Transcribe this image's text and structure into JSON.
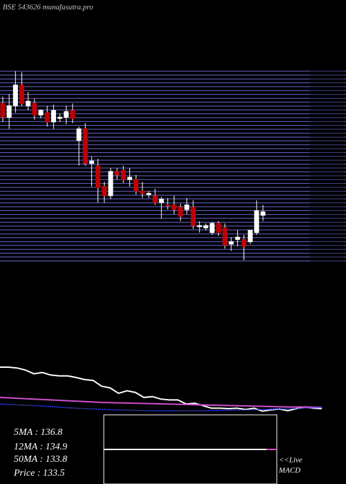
{
  "chart_data": {
    "type": "candlestick",
    "title": "BSE 543626 munafasutra.pro",
    "ylim": [
      131.2,
      148
    ],
    "candles": {
      "open": [
        145.2,
        144.0,
        145.0,
        146.8,
        145.0,
        145.2,
        144.2,
        144.4,
        143.6,
        144.0,
        144.0,
        144.6,
        142.0,
        143.0,
        140.0,
        139.8,
        138.0,
        137.2,
        139.3,
        139.4,
        138.6,
        138.6,
        137.6,
        137.3,
        137.2,
        136.6,
        136.4,
        136.4,
        136.2,
        136.0,
        136.2,
        134.6,
        134.4,
        134.0,
        134.8,
        134.4,
        133.0,
        133.4,
        133.4,
        133.2,
        134.0,
        135.5
      ],
      "high": [
        145.8,
        146.0,
        148.0,
        147.9,
        146.2,
        145.6,
        144.7,
        145.0,
        145.1,
        144.3,
        145.0,
        145.2,
        143.2,
        143.5,
        140.6,
        140.4,
        138.4,
        139.6,
        139.6,
        139.8,
        139.6,
        139.0,
        138.4,
        137.6,
        137.8,
        137.1,
        137.0,
        137.2,
        136.5,
        137.0,
        136.8,
        135.0,
        134.8,
        134.9,
        135.0,
        134.8,
        133.6,
        134.2,
        133.8,
        134.2,
        136.8,
        136.4
      ],
      "low": [
        143.6,
        143.0,
        144.4,
        145.0,
        144.6,
        143.8,
        143.9,
        143.2,
        143.0,
        143.6,
        143.4,
        143.5,
        139.8,
        139.8,
        138.0,
        136.6,
        136.6,
        136.9,
        138.6,
        138.3,
        138.0,
        137.3,
        137.0,
        137.0,
        136.4,
        135.2,
        136.0,
        135.6,
        135.0,
        135.6,
        134.3,
        134.0,
        134.2,
        133.8,
        133.7,
        132.6,
        132.4,
        132.8,
        131.6,
        133.0,
        133.8,
        135.0
      ],
      "close": [
        144.0,
        145.0,
        146.8,
        145.2,
        145.4,
        144.2,
        144.6,
        143.6,
        144.6,
        144.0,
        144.5,
        143.9,
        143.0,
        140.0,
        140.2,
        137.9,
        137.2,
        139.3,
        139.0,
        138.6,
        138.8,
        137.6,
        137.4,
        137.4,
        136.6,
        136.9,
        136.3,
        136.0,
        135.4,
        136.4,
        134.6,
        134.6,
        134.6,
        134.8,
        134.0,
        132.9,
        133.2,
        133.6,
        132.8,
        134.2,
        135.9,
        135.8
      ]
    },
    "ma_panel": {
      "ylim": [
        132,
        147
      ],
      "series": [
        {
          "color": "#ffffff",
          "values": [
            143.5,
            143.5,
            143.3,
            142.8,
            141.9,
            142.2,
            141.6,
            141.4,
            141.4,
            141.0,
            140.5,
            140.3,
            138.9,
            138.5,
            137.2,
            137.8,
            137.4,
            136.2,
            136.4,
            135.8,
            135.6,
            135.6,
            134.6,
            134.8,
            134.2,
            133.6,
            133.6,
            133.5,
            133.6,
            133.3,
            133.6,
            132.9,
            133.2,
            133.4,
            133.0,
            133.5,
            133.9,
            133.6,
            133.5
          ]
        },
        {
          "color": "#d050d0",
          "values": [
            136.2,
            136.0,
            135.8,
            135.6,
            135.4,
            135.2,
            135.0,
            134.9,
            134.8,
            134.7,
            134.6,
            134.5,
            134.4,
            134.3,
            134.2,
            134.1,
            134.0,
            133.9,
            133.9,
            133.8
          ]
        },
        {
          "color": "#3040ff",
          "values": [
            134.6,
            134.4,
            134.2,
            133.9,
            133.6,
            133.4,
            133.2,
            133.1,
            133.0,
            133.0,
            133.0,
            133.0,
            133.1,
            133.2,
            133.3,
            133.4,
            133.6,
            133.8
          ]
        }
      ]
    },
    "stats": [
      "5MA : 136.8",
      "12MA : 134.9",
      "50MA : 133.8",
      "Price   : 133.5"
    ],
    "macd_label": [
      "<<Live",
      "MACD"
    ]
  }
}
